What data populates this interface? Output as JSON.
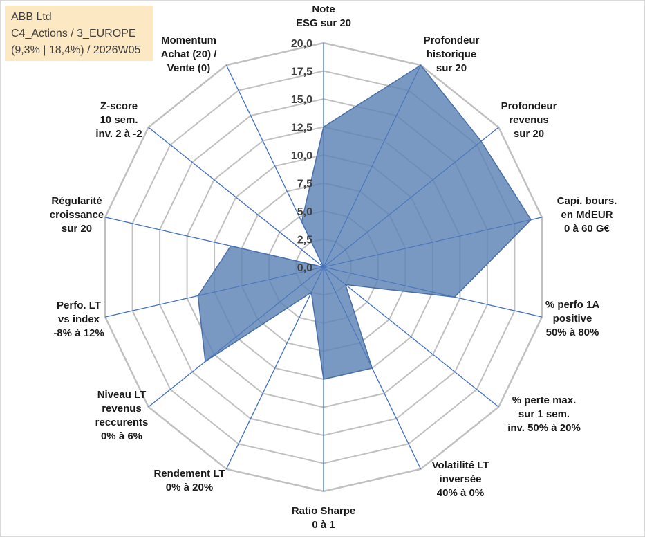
{
  "info": {
    "line1": "ABB Ltd",
    "line2": "C4_Actions / 3_EUROPE",
    "line3": "(9,3% | 18,4%) / 2026W05"
  },
  "chart_data": {
    "type": "radar",
    "title": "",
    "rmin": 0,
    "rmax": 20,
    "ticks": [
      "0,0",
      "2,5",
      "5,0",
      "7,5",
      "10,0",
      "12,5",
      "15,0",
      "17,5",
      "20,0"
    ],
    "axes": [
      {
        "lines": [
          "Note",
          "ESG sur 20"
        ]
      },
      {
        "lines": [
          "Profondeur",
          "historique",
          "sur 20"
        ]
      },
      {
        "lines": [
          "Profondeur",
          "revenus",
          "sur 20"
        ]
      },
      {
        "lines": [
          "Capi. bours.",
          "en MdEUR",
          "0 à 60 G€"
        ]
      },
      {
        "lines": [
          "% perfo 1A",
          "positive",
          "50% à 80%"
        ]
      },
      {
        "lines": [
          "% perte max.",
          "sur 1 sem.",
          "inv. 50% à 20%"
        ]
      },
      {
        "lines": [
          "Volatilité LT",
          "inversée",
          "40% à 0%"
        ]
      },
      {
        "lines": [
          "Ratio Sharpe",
          "0 à 1"
        ]
      },
      {
        "lines": [
          "Rendement LT",
          "0% à 20%"
        ]
      },
      {
        "lines": [
          "Niveau LT",
          "revenus",
          "reccurents",
          "0% à 6%"
        ]
      },
      {
        "lines": [
          "Perfo. LT",
          "vs index",
          "-8% à 12%"
        ]
      },
      {
        "lines": [
          "Régularité",
          "croissance",
          "sur 20"
        ]
      },
      {
        "lines": [
          "Z-score",
          "10 sem.",
          "inv. 2 à -2"
        ]
      },
      {
        "lines": [
          "Momentum",
          "Achat (20) /",
          "Vente (0)"
        ]
      }
    ],
    "series": [
      {
        "name": "ABB Ltd",
        "color": "#5b82b5",
        "values": [
          12.5,
          20.0,
          18.0,
          19.0,
          12.0,
          2.5,
          10.0,
          10.0,
          2.5,
          13.5,
          11.5,
          8.5,
          0.0,
          4.5
        ]
      }
    ],
    "colors": {
      "grid": "#c0c0c0",
      "spoke": "#4472c4",
      "fill": "#5b82b5",
      "fill_stroke": "#4a6fa5"
    }
  }
}
